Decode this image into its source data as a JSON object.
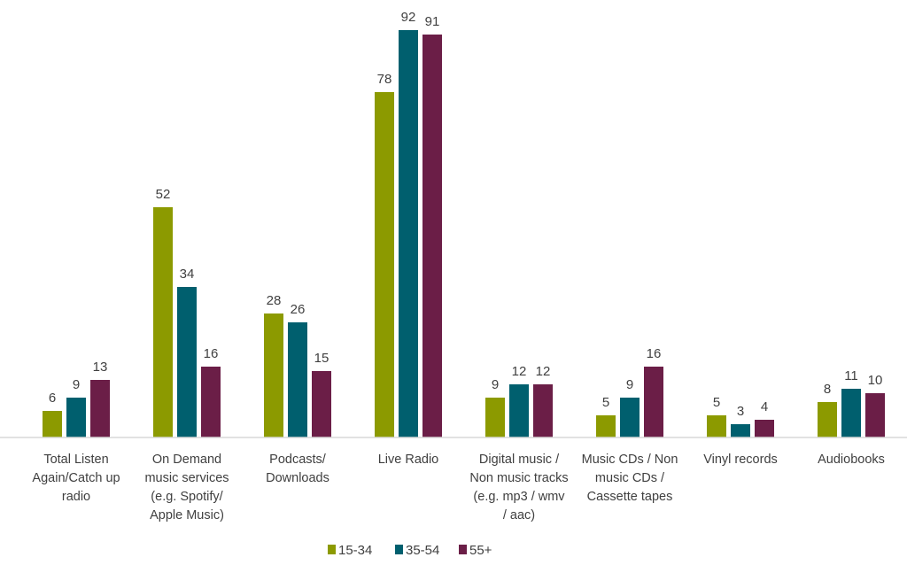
{
  "chart_data": {
    "type": "bar",
    "title": "",
    "xlabel": "",
    "ylabel": "",
    "ylim": [
      0,
      100
    ],
    "grid": false,
    "legend_position": "bottom",
    "categories": [
      [
        "Total Listen",
        "Again/Catch up",
        "radio"
      ],
      [
        "On Demand",
        "music services",
        "(e.g. Spotify/",
        "Apple Music)"
      ],
      [
        "Podcasts/",
        "Downloads"
      ],
      [
        "Live Radio"
      ],
      [
        "Digital music /",
        "Non music tracks",
        "(e.g. mp3 / wmv",
        "/ aac)"
      ],
      [
        "Music CDs / Non",
        "music CDs /",
        "Cassette tapes"
      ],
      [
        "Vinyl records"
      ],
      [
        "Audiobooks"
      ]
    ],
    "series": [
      {
        "name": "15-34",
        "color": "#8c9a00",
        "values": [
          6,
          52,
          28,
          78,
          9,
          5,
          5,
          8
        ]
      },
      {
        "name": "35-54",
        "color": "#005f6e",
        "values": [
          9,
          34,
          26,
          92,
          12,
          9,
          3,
          11
        ]
      },
      {
        "name": "55+",
        "color": "#6b1e47",
        "values": [
          13,
          16,
          15,
          91,
          12,
          16,
          4,
          10
        ]
      }
    ]
  }
}
